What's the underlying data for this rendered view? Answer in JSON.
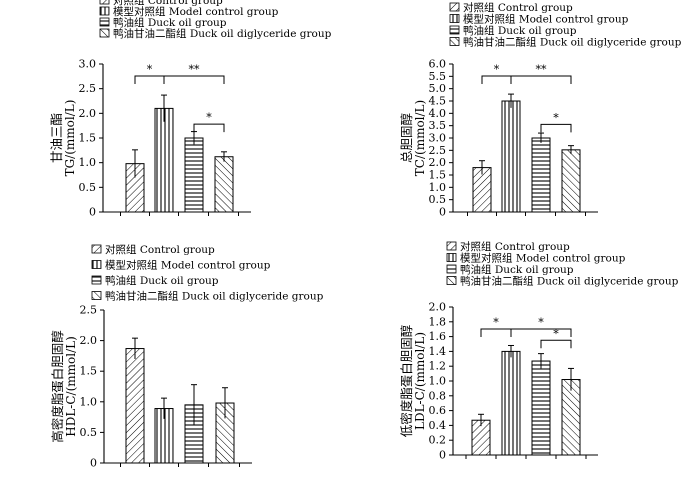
{
  "legend": [
    "对照组 Control group",
    "模型对照组 Model control group",
    "鸭油组 Duck oil group",
    "鸭油甘油二酯组  Duck oil diglyceride group"
  ],
  "chart_data": [
    {
      "type": "bar",
      "ylabel_cn": "甘油三酯",
      "ylabel_en": "TG/(mmol/L)",
      "ylim": [
        0,
        3.0
      ],
      "ticks": [
        "0",
        "0.5",
        "1.0",
        "1.5",
        "2.0",
        "2.5",
        "3.0"
      ],
      "groups": [
        "对照组 Control group",
        "模型对照组 Model control group",
        "鸭油组 Duck oil group",
        "鸭油甘油二酯组  Duck oil diglyceride group"
      ],
      "values": [
        0.98,
        2.1,
        1.5,
        1.12
      ],
      "errors": [
        0.28,
        0.27,
        0.13,
        0.1
      ],
      "significance": [
        {
          "from": 0,
          "to": 1,
          "label": "*"
        },
        {
          "from": 1,
          "to": 3,
          "label": "**"
        },
        {
          "from": 2,
          "to": 3,
          "label": "*"
        }
      ],
      "grid": false
    },
    {
      "type": "bar",
      "ylabel_cn": "总胆固醇",
      "ylabel_en": "TC/(mmol/L)",
      "ylim": [
        0,
        6.0
      ],
      "ticks": [
        "0",
        "0.5",
        "1.0",
        "1.5",
        "2.0",
        "2.5",
        "3.0",
        "3.5",
        "4.0",
        "4.5",
        "5.0",
        "5.5",
        "6.0"
      ],
      "groups": [
        "对照组 Control group",
        "模型对照组 Model control group",
        "鸭油组 Duck oil group",
        "鸭油甘油二酯组  Duck oil diglyceride group"
      ],
      "values": [
        1.8,
        4.5,
        3.0,
        2.52
      ],
      "errors": [
        0.28,
        0.28,
        0.2,
        0.17
      ],
      "significance": [
        {
          "from": 0,
          "to": 1,
          "label": "*"
        },
        {
          "from": 1,
          "to": 3,
          "label": "**"
        },
        {
          "from": 2,
          "to": 3,
          "label": "*"
        }
      ],
      "grid": false
    },
    {
      "type": "bar",
      "ylabel_cn": "高密度脂蛋白胆固醇",
      "ylabel_en": "HDL-C/(mmol/L)",
      "ylim": [
        0,
        2.5
      ],
      "ticks": [
        "0",
        "0.5",
        "1.0",
        "1.5",
        "2.0",
        "2.5"
      ],
      "groups": [
        "对照组 Control group",
        "模型对照组 Model control group",
        "鸭油组 Duck oil group",
        "鸭油甘油二酯组  Duck oil diglyceride group"
      ],
      "values": [
        1.87,
        0.89,
        0.95,
        0.98
      ],
      "errors": [
        0.17,
        0.17,
        0.33,
        0.25
      ],
      "significance": [],
      "grid": false
    },
    {
      "type": "bar",
      "ylabel_cn": "低密度脂蛋白胆固醇",
      "ylabel_en": "LDL-C/(mmol/L)",
      "ylim": [
        0,
        2.0
      ],
      "ticks": [
        "0",
        "0.2",
        "0.4",
        "0.6",
        "0.8",
        "1.0",
        "1.2",
        "1.4",
        "1.6",
        "1.8",
        "2.0"
      ],
      "groups": [
        "对照组 Control group",
        "模型对照组 Model control group",
        "鸭油组 Duck oil group",
        "鸭油甘油二酯组  Duck oil diglyceride group"
      ],
      "values": [
        0.47,
        1.4,
        1.27,
        1.02
      ],
      "errors": [
        0.08,
        0.08,
        0.1,
        0.15
      ],
      "significance": [
        {
          "from": 0,
          "to": 1,
          "label": "*"
        },
        {
          "from": 1,
          "to": 3,
          "label": "*"
        },
        {
          "from": 2,
          "to": 3,
          "label": "*"
        }
      ],
      "grid": false
    }
  ]
}
